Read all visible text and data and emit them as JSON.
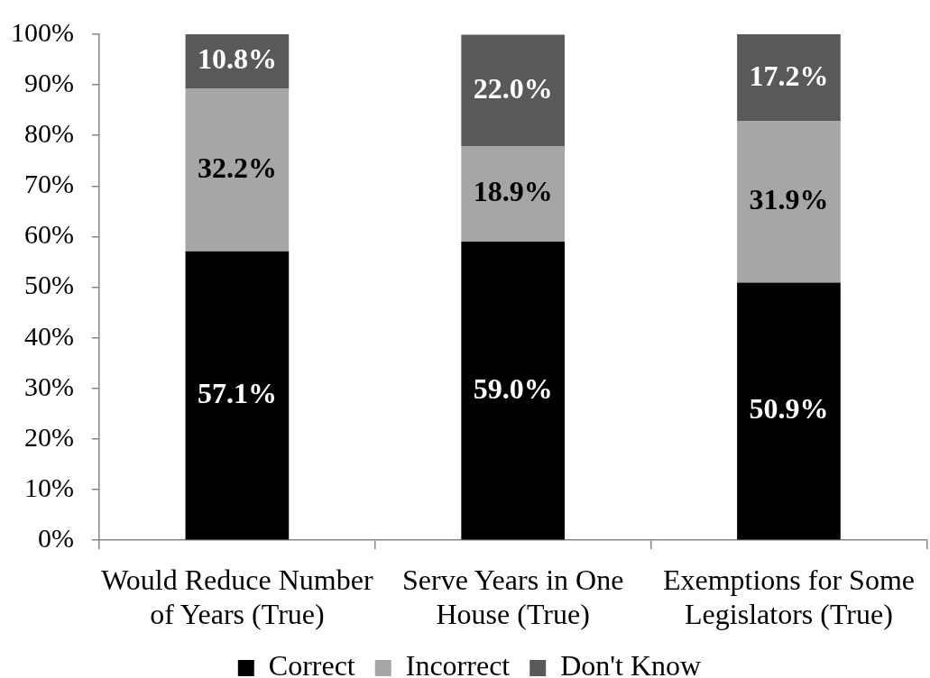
{
  "chart_data": {
    "type": "bar",
    "stacked": true,
    "categories": [
      "Would Reduce Number of Years (True)",
      "Serve Years in One House (True)",
      "Exemptions for Some Legislators (True)"
    ],
    "series": [
      {
        "name": "Correct",
        "color": "#000000",
        "values": [
          57.1,
          59.0,
          50.9
        ],
        "value_labels": [
          "57.1%",
          "59.0%",
          "50.9%"
        ]
      },
      {
        "name": "Incorrect",
        "color": "#a6a6a6",
        "values": [
          32.2,
          18.9,
          31.9
        ],
        "value_labels": [
          "32.2%",
          "18.9%",
          "31.9%"
        ]
      },
      {
        "name": "Don't Know",
        "color": "#595959",
        "values": [
          10.8,
          22.0,
          17.2
        ],
        "value_labels": [
          "10.8%",
          "22.0%",
          "17.2%"
        ]
      }
    ],
    "ylim": [
      0,
      100
    ],
    "yticks": [
      {
        "value": 0,
        "label": "0%"
      },
      {
        "value": 10,
        "label": "10%"
      },
      {
        "value": 20,
        "label": "20%"
      },
      {
        "value": 30,
        "label": "30%"
      },
      {
        "value": 40,
        "label": "40%"
      },
      {
        "value": 50,
        "label": "50%"
      },
      {
        "value": 60,
        "label": "60%"
      },
      {
        "value": 70,
        "label": "70%"
      },
      {
        "value": 80,
        "label": "80%"
      },
      {
        "value": 90,
        "label": "90%"
      },
      {
        "value": 100,
        "label": "100%"
      }
    ],
    "legend": "bottom"
  }
}
